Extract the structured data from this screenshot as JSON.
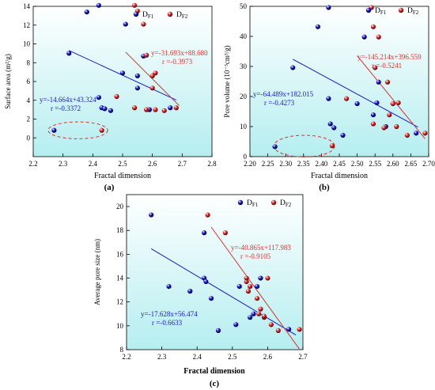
{
  "colors": {
    "f1": "#1a1acc",
    "f2": "#e03030",
    "bg_top": "#ffffff",
    "bg_bottom": "#b5eef0"
  },
  "chart_data": [
    {
      "type": "scatter",
      "panel": "(a)",
      "xlabel": "Fractal dimension",
      "ylabel": "Surface area (m²/g)",
      "xlim": [
        2.2,
        2.8
      ],
      "ylim": [
        -2,
        14
      ],
      "xticks": [
        "2.2",
        "2.3",
        "2.4",
        "2.5",
        "2.6",
        "2.7",
        "2.8"
      ],
      "yticks": [
        "0",
        "2",
        "4",
        "6",
        "8",
        "10",
        "12",
        "14"
      ],
      "xtick_values": [
        2.2,
        2.3,
        2.4,
        2.5,
        2.6,
        2.7,
        2.8
      ],
      "ytick_values": [
        0,
        2,
        4,
        6,
        8,
        10,
        12,
        14
      ],
      "legend": [
        "D",
        "D"
      ],
      "legend_sub": [
        "F1",
        "F2"
      ],
      "series": [
        {
          "name": "DF1",
          "color_key": "f1",
          "points": [
            [
              2.27,
              0.8
            ],
            [
              2.32,
              9.0
            ],
            [
              2.38,
              13.4
            ],
            [
              2.42,
              14.1
            ],
            [
              2.42,
              4.3
            ],
            [
              2.43,
              3.2
            ],
            [
              2.44,
              3.1
            ],
            [
              2.46,
              2.9
            ],
            [
              2.5,
              6.9
            ],
            [
              2.51,
              12.1
            ],
            [
              2.55,
              5.3
            ],
            [
              2.57,
              8.7
            ],
            [
              2.55,
              6.6
            ],
            [
              2.59,
              3.0
            ],
            [
              2.66,
              3.2
            ]
          ]
        },
        {
          "name": "DF2",
          "color_key": "f2",
          "points": [
            [
              2.43,
              0.8
            ],
            [
              2.48,
              4.4
            ],
            [
              2.54,
              14.1
            ],
            [
              2.55,
              13.5
            ],
            [
              2.57,
              12.1
            ],
            [
              2.54,
              3.2
            ],
            [
              2.58,
              8.8
            ],
            [
              2.58,
              3.0
            ],
            [
              2.6,
              6.6
            ],
            [
              2.6,
              5.3
            ],
            [
              2.61,
              6.9
            ],
            [
              2.61,
              3.0
            ],
            [
              2.64,
              2.9
            ],
            [
              2.68,
              3.2
            ]
          ]
        }
      ],
      "fits": [
        {
          "color_key": "f1",
          "slope": -14.664,
          "intercept": 43.324,
          "range": [
            2.32,
            2.68
          ]
        },
        {
          "color_key": "f2",
          "slope": -31.693,
          "intercept": 88.68,
          "range": [
            2.51,
            2.69
          ]
        }
      ],
      "annotations": [
        {
          "color_key": "f1",
          "lines": [
            "y=-14.664x+43.324",
            "r =-0.3372"
          ]
        },
        {
          "color_key": "f2",
          "lines": [
            "y=-31.693x+88.680",
            "r =-0.3973"
          ]
        }
      ],
      "ellipse": {
        "cx": 2.35,
        "cy": 0.8,
        "rx": 0.1,
        "ry": 0.9
      }
    },
    {
      "type": "scatter",
      "panel": "(b)",
      "xlabel": "Fractal dimension",
      "ylabel": "Pore volume (10⁻³cm³/g)",
      "xlim": [
        2.2,
        2.7
      ],
      "ylim": [
        0,
        50
      ],
      "xticks": [
        "2.20",
        "2.25",
        "2.30",
        "2.35",
        "2.40",
        "2.45",
        "2.50",
        "2.55",
        "2.60",
        "2.65",
        "2.70"
      ],
      "yticks": [
        "0",
        "10",
        "20",
        "30",
        "40",
        "50"
      ],
      "xtick_values": [
        2.2,
        2.25,
        2.3,
        2.35,
        2.4,
        2.45,
        2.5,
        2.55,
        2.6,
        2.65,
        2.7
      ],
      "ytick_values": [
        0,
        10,
        20,
        30,
        40,
        50
      ],
      "legend": [
        "D",
        "D"
      ],
      "legend_sub": [
        "F1",
        "F2"
      ],
      "series": [
        {
          "name": "DF1",
          "color_key": "f1",
          "points": [
            [
              2.27,
              3.3
            ],
            [
              2.32,
              29.6
            ],
            [
              2.39,
              43.2
            ],
            [
              2.42,
              49.6
            ],
            [
              2.42,
              19.3
            ],
            [
              2.425,
              10.9
            ],
            [
              2.435,
              9.6
            ],
            [
              2.46,
              7.1
            ],
            [
              2.5,
              17.6
            ],
            [
              2.52,
              39.8
            ],
            [
              2.545,
              13.9
            ],
            [
              2.555,
              17.9
            ],
            [
              2.56,
              24.8
            ],
            [
              2.58,
              10.0
            ],
            [
              2.665,
              7.8
            ]
          ]
        },
        {
          "name": "DF2",
          "color_key": "f2",
          "points": [
            [
              2.43,
              3.6
            ],
            [
              2.47,
              19.3
            ],
            [
              2.54,
              49.6
            ],
            [
              2.545,
              43.2
            ],
            [
              2.55,
              29.6
            ],
            [
              2.56,
              39.8
            ],
            [
              2.545,
              10.9
            ],
            [
              2.575,
              9.6
            ],
            [
              2.585,
              24.8
            ],
            [
              2.59,
              13.9
            ],
            [
              2.6,
              17.6
            ],
            [
              2.61,
              10.0
            ],
            [
              2.615,
              17.9
            ],
            [
              2.64,
              7.1
            ],
            [
              2.69,
              7.8
            ]
          ]
        }
      ],
      "fits": [
        {
          "color_key": "f1",
          "slope": -64.489,
          "intercept": 182.015,
          "range": [
            2.32,
            2.67
          ]
        },
        {
          "color_key": "f2",
          "slope": -145.214,
          "intercept": 396.559,
          "range": [
            2.5,
            2.69
          ]
        }
      ],
      "annotations": [
        {
          "color_key": "f1",
          "lines": [
            "y=-64.489x+182.015",
            "r =-0.4273"
          ]
        },
        {
          "color_key": "f2",
          "lines": [
            "y=-145.214x+396.559",
            "r =-0.5241"
          ]
        }
      ],
      "ellipse": {
        "cx": 2.352,
        "cy": 3.5,
        "rx": 0.085,
        "ry": 3.6
      }
    },
    {
      "type": "scatter",
      "panel": "(c)",
      "xlabel": "Fractal dimension",
      "ylabel": "Average pore size (nm)",
      "xlim": [
        2.2,
        2.7
      ],
      "ylim": [
        8,
        21
      ],
      "xticks": [
        "2.2",
        "2.3",
        "2.4",
        "2.5",
        "2.6",
        "2.7"
      ],
      "yticks": [
        "8",
        "10",
        "12",
        "14",
        "16",
        "18",
        "20"
      ],
      "xtick_values": [
        2.2,
        2.3,
        2.4,
        2.5,
        2.6,
        2.7
      ],
      "ytick_values": [
        8,
        10,
        12,
        14,
        16,
        18,
        20
      ],
      "legend": [
        "D",
        "D"
      ],
      "legend_sub": [
        "F1",
        "F2"
      ],
      "series": [
        {
          "name": "DF1",
          "color_key": "f1",
          "points": [
            [
              2.27,
              19.3
            ],
            [
              2.32,
              13.3
            ],
            [
              2.38,
              12.9
            ],
            [
              2.42,
              17.8
            ],
            [
              2.42,
              14.0
            ],
            [
              2.425,
              13.7
            ],
            [
              2.44,
              12.3
            ],
            [
              2.46,
              9.6
            ],
            [
              2.51,
              10.1
            ],
            [
              2.52,
              13.3
            ],
            [
              2.55,
              10.7
            ],
            [
              2.56,
              11.0
            ],
            [
              2.57,
              13.3
            ],
            [
              2.58,
              14.0
            ],
            [
              2.66,
              9.7
            ]
          ]
        },
        {
          "name": "DF2",
          "color_key": "f2",
          "points": [
            [
              2.43,
              19.3
            ],
            [
              2.48,
              17.8
            ],
            [
              2.54,
              13.7
            ],
            [
              2.54,
              14.0
            ],
            [
              2.545,
              12.9
            ],
            [
              2.55,
              13.3
            ],
            [
              2.57,
              12.3
            ],
            [
              2.575,
              11.0
            ],
            [
              2.58,
              11.4
            ],
            [
              2.59,
              10.7
            ],
            [
              2.59,
              10.8
            ],
            [
              2.6,
              14.0
            ],
            [
              2.61,
              10.1
            ],
            [
              2.63,
              9.6
            ],
            [
              2.69,
              9.7
            ]
          ]
        }
      ],
      "fits": [
        {
          "color_key": "f1",
          "slope": -17.628,
          "intercept": 56.474,
          "range": [
            2.27,
            2.68
          ]
        },
        {
          "color_key": "f2",
          "slope": -40.865,
          "intercept": 117.983,
          "range": [
            2.44,
            2.69
          ]
        }
      ],
      "annotations": [
        {
          "color_key": "f1",
          "lines": [
            "y=-17.628x+56.474",
            "r =-0.6633"
          ]
        },
        {
          "color_key": "f2",
          "lines": [
            "y=-40.865x+117.983",
            "r =-0.9105"
          ]
        }
      ]
    }
  ]
}
